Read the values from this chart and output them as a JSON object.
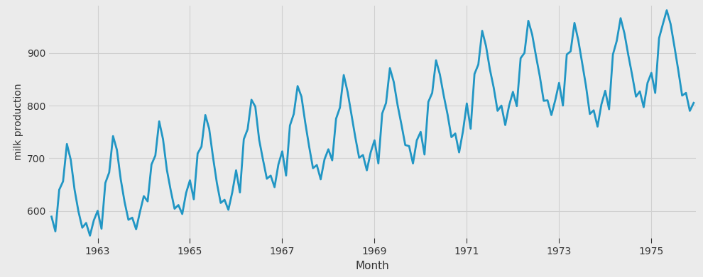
{
  "title": "",
  "xlabel": "Month",
  "ylabel": "milk production",
  "line_color": "#2196c4",
  "line_width": 2.0,
  "background_color": "#ebebeb",
  "grid_color": "#d0d0d0",
  "ylim": [
    548,
    990
  ],
  "yticks": [
    600,
    700,
    800,
    900
  ],
  "xtick_years": [
    1963,
    1965,
    1967,
    1969,
    1971,
    1973,
    1975
  ],
  "values": [
    589,
    561,
    640,
    656,
    727,
    697,
    640,
    599,
    568,
    577,
    553,
    582,
    600,
    566,
    653,
    673,
    742,
    716,
    660,
    617,
    583,
    587,
    565,
    598,
    628,
    618,
    688,
    705,
    770,
    736,
    678,
    639,
    604,
    611,
    594,
    634,
    658,
    622,
    709,
    722,
    782,
    756,
    702,
    653,
    615,
    621,
    602,
    635,
    677,
    635,
    736,
    755,
    811,
    798,
    735,
    697,
    661,
    667,
    645,
    688,
    713,
    667,
    762,
    784,
    837,
    817,
    767,
    722,
    681,
    687,
    660,
    698,
    717,
    696,
    775,
    796,
    858,
    826,
    783,
    740,
    701,
    706,
    677,
    711,
    734,
    690,
    785,
    805,
    871,
    845,
    801,
    764,
    725,
    723,
    690,
    734,
    750,
    707,
    807,
    824,
    886,
    859,
    819,
    783,
    740,
    747,
    711,
    751,
    804,
    756,
    860,
    878,
    942,
    913,
    869,
    834,
    790,
    800,
    763,
    800,
    826,
    799,
    890,
    900,
    961,
    935,
    894,
    855,
    809,
    810,
    782,
    810,
    843,
    800,
    897,
    903,
    957,
    924,
    881,
    837,
    784,
    791,
    760,
    802,
    828,
    793,
    897,
    923,
    966,
    937,
    896,
    858,
    817,
    827,
    797,
    843,
    862,
    824,
    928,
    955,
    981,
    955,
    912,
    867,
    819,
    824,
    790,
    805
  ],
  "start_year": 1962,
  "start_month": 1
}
